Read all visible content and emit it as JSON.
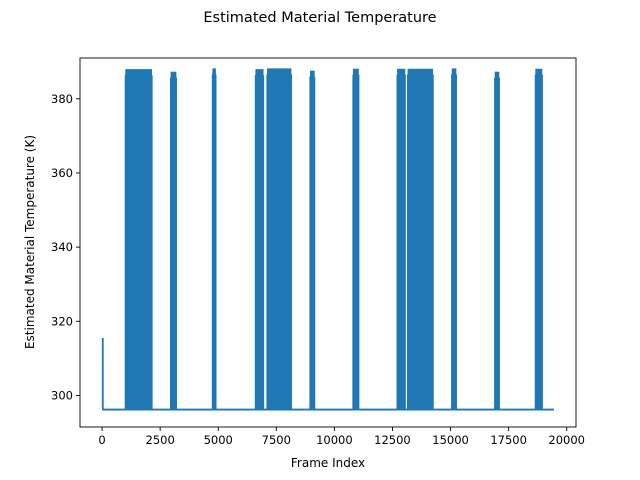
{
  "chart_data": {
    "type": "line",
    "title": "Estimated Material Temperature",
    "xlabel": "Frame Index",
    "ylabel": "Estimated Material Temperature (K)",
    "xlim": [
      -950,
      20400
    ],
    "ylim": [
      291.5,
      391
    ],
    "x_ticks": [
      0,
      2500,
      5000,
      7500,
      10000,
      12500,
      15000,
      17500,
      20000
    ],
    "y_ticks": [
      300,
      320,
      340,
      360,
      380
    ],
    "grid": false,
    "legend": "none",
    "color": "#1f77b4",
    "baseline": 296.2,
    "x_range": [
      0,
      19450
    ],
    "initial_spike": {
      "frame": 30,
      "peak": 315.5
    },
    "bursts": [
      {
        "start": 1000,
        "end": 2150,
        "peak": 388,
        "low": 296.2
      },
      {
        "start": 2950,
        "end": 3200,
        "peak": 387.3,
        "low": 296.2
      },
      {
        "start": 4750,
        "end": 4900,
        "peak": 388.2,
        "low": 296.2
      },
      {
        "start": 6600,
        "end": 6950,
        "peak": 388,
        "low": 296.2
      },
      {
        "start": 7100,
        "end": 8150,
        "peak": 388.2,
        "low": 296.2
      },
      {
        "start": 8950,
        "end": 9150,
        "peak": 387.6,
        "low": 296.2
      },
      {
        "start": 10800,
        "end": 11050,
        "peak": 388.1,
        "low": 296.2
      },
      {
        "start": 12700,
        "end": 13050,
        "peak": 388.1,
        "low": 296.2
      },
      {
        "start": 13150,
        "end": 14250,
        "peak": 388.1,
        "low": 296.2
      },
      {
        "start": 15050,
        "end": 15250,
        "peak": 388.2,
        "low": 296.2
      },
      {
        "start": 16900,
        "end": 17100,
        "peak": 387.3,
        "low": 296.2
      },
      {
        "start": 18650,
        "end": 18950,
        "peak": 388.1,
        "low": 296.2
      }
    ]
  }
}
